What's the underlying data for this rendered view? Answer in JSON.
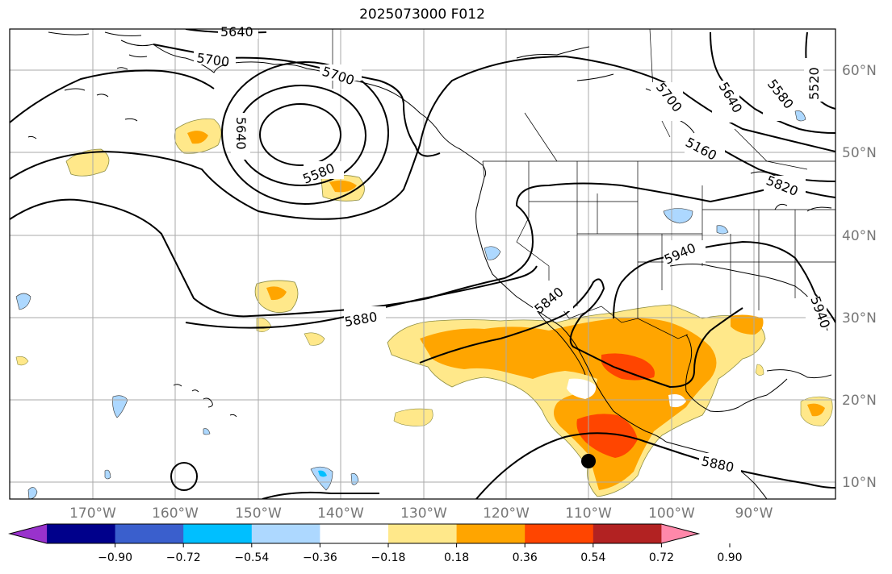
{
  "title": "2025073000 F012",
  "longitude_labels": [
    "170°W",
    "160°W",
    "150°W",
    "140°W",
    "130°W",
    "120°W",
    "110°W",
    "100°W",
    "90°W"
  ],
  "latitude_labels": [
    "60°N",
    "50°N",
    "40°N",
    "30°N",
    "20°N",
    "10°N"
  ],
  "contour_labels": [
    "5640",
    "5700",
    "5700",
    "5640",
    "5580",
    "5700",
    "5640",
    "5580",
    "5520",
    "5160",
    "5820",
    "5940",
    "5840",
    "5880",
    "5940",
    "5880"
  ],
  "colorbar": {
    "ticks": [
      "−0.90",
      "−0.72",
      "−0.54",
      "−0.36",
      "−0.18",
      "0.18",
      "0.36",
      "0.54",
      "0.72",
      "0.90"
    ],
    "colors": [
      "#9932cc",
      "#00008b",
      "#3a5fcd",
      "#00bfff",
      "#add8ff",
      "#ffffff",
      "#ffe88a",
      "#ffa500",
      "#ff4500",
      "#b22222",
      "#ff88aa"
    ]
  },
  "colors": {
    "positive_light": "#ffe88a",
    "positive_mid": "#ffa500",
    "positive_strong": "#ff4500",
    "negative_light": "#add8ff",
    "negative_mid": "#00bfff",
    "gridline": "#aaaaaa",
    "contour": "#000000"
  }
}
